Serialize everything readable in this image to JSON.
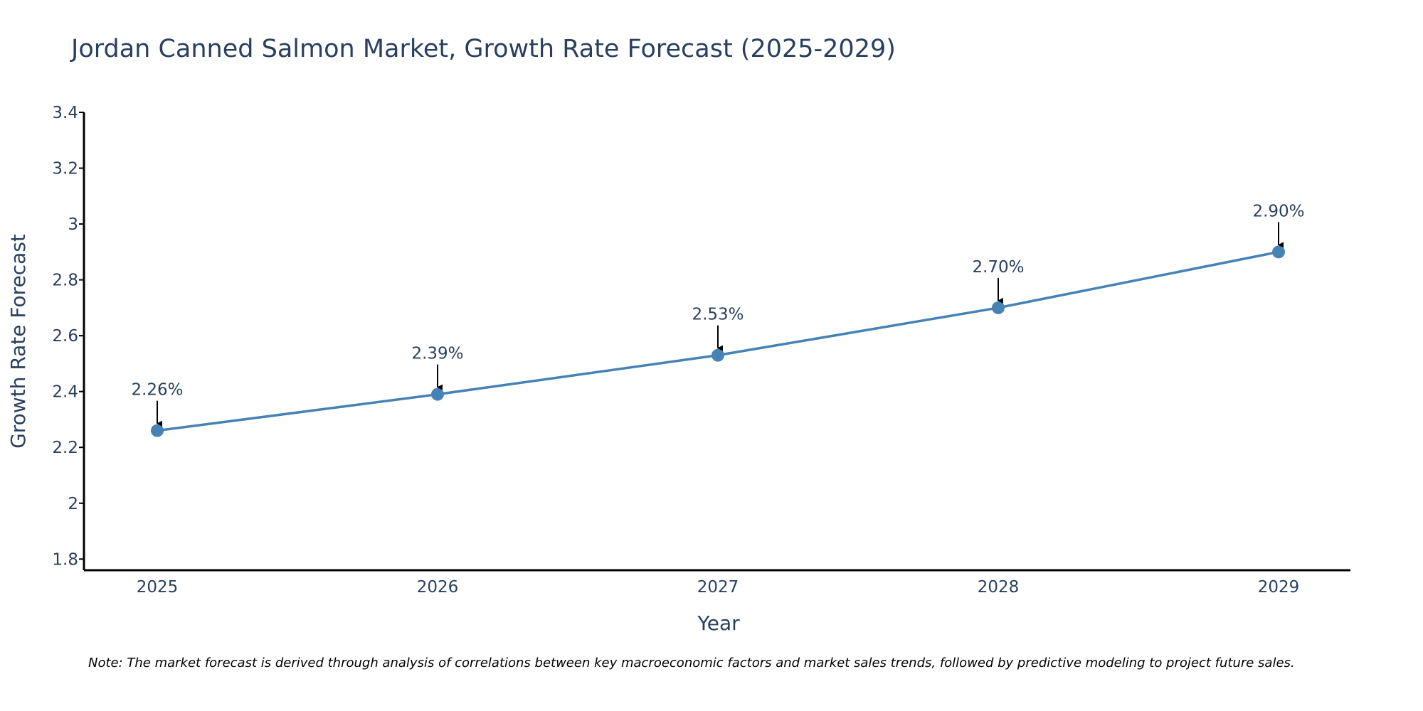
{
  "chart_data": {
    "type": "line",
    "title": "Jordan Canned Salmon Market, Growth Rate Forecast (2025-2029)",
    "xlabel": "Year",
    "ylabel": "Growth Rate Forecast",
    "categories": [
      "2025",
      "2026",
      "2027",
      "2028",
      "2029"
    ],
    "series": [
      {
        "name": "Growth Rate Forecast",
        "values": [
          2.26,
          2.39,
          2.53,
          2.7,
          2.9
        ],
        "labels": [
          "2.26%",
          "2.39%",
          "2.53%",
          "2.70%",
          "2.90%"
        ]
      }
    ],
    "ylim": [
      1.76,
      3.4
    ],
    "yticks": [
      1.8,
      2,
      2.2,
      2.4,
      2.6,
      2.8,
      3,
      3.2,
      3.4
    ],
    "ytick_labels": [
      "1.8",
      "2",
      "2.2",
      "2.4",
      "2.6",
      "2.8",
      "3",
      "3.2",
      "3.4"
    ],
    "grid": false,
    "line_color": "#4682b4",
    "marker_color": "#4682b4",
    "arrow_color": "#000000",
    "note": "Note: The market forecast is derived through analysis of correlations between key macroeconomic factors and market sales trends, followed by predictive modeling to project future sales."
  }
}
